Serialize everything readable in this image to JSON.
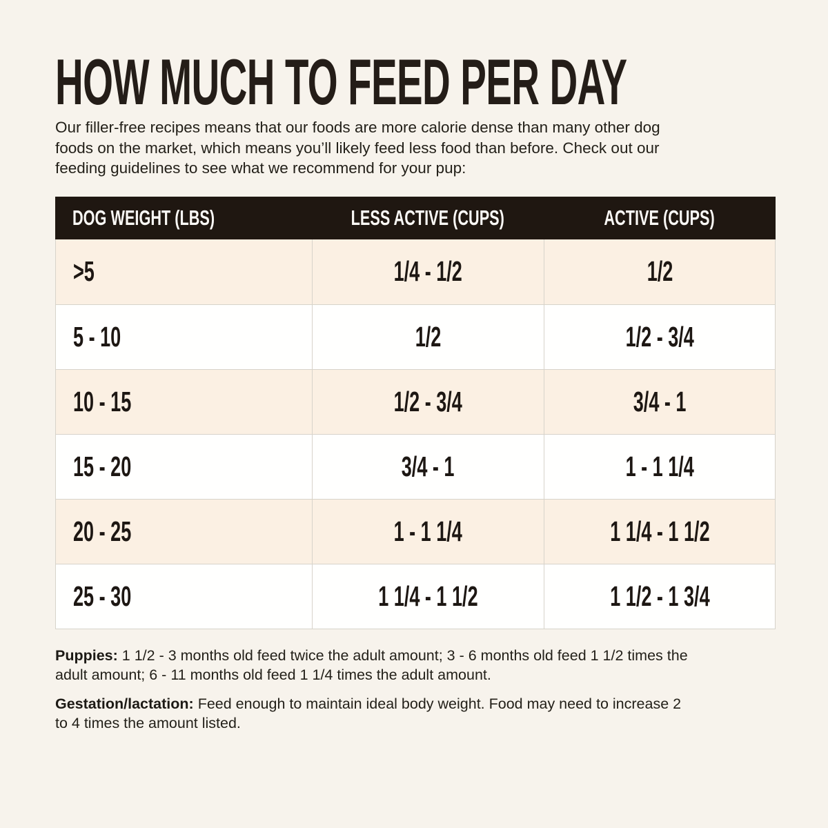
{
  "header": {
    "title": "HOW MUCH TO FEED PER DAY",
    "intro": "Our filler-free recipes means that our foods are more calorie dense than many other dog\nfoods on the market, which means you’ll likely feed less food than before. Check out our\nfeeding guidelines to see what we recommend for your pup:"
  },
  "table": {
    "columns": [
      "DOG WEIGHT (LBS)",
      "LESS ACTIVE (CUPS)",
      "ACTIVE (CUPS)"
    ],
    "rows": [
      [
        ">5",
        "1/4 - 1/2",
        "1/2"
      ],
      [
        "5 - 10",
        "1/2",
        "1/2 - 3/4"
      ],
      [
        "10 - 15",
        "1/2 - 3/4",
        "3/4 - 1"
      ],
      [
        "15 - 20",
        "3/4 - 1",
        "1 - 1 1/4"
      ],
      [
        "20 - 25",
        "1 - 1 1/4",
        "1 1/4 - 1 1/2"
      ],
      [
        "25 - 30",
        "1 1/4 - 1 1/2",
        "1 1/2 - 1 3/4"
      ]
    ]
  },
  "notes": [
    {
      "label": "Puppies:",
      "text": "1 1/2 - 3 months old feed twice the adult amount; 3 - 6 months old feed 1 1/2 times the\nadult amount; 6 - 11 months old feed 1 1/4 times the adult amount."
    },
    {
      "label": "Gestation/lactation:",
      "text": "Feed enough to maintain ideal body weight. Food may need to increase 2\nto 4 times the amount listed."
    }
  ],
  "colors": {
    "page_background": "#f7f3ec",
    "row_cream": "#fbf0e3",
    "row_white": "#fffffe",
    "header_band": "#1f1711",
    "header_text": "#faf8f5",
    "body_text": "#232019",
    "border": "#d7d3ca"
  }
}
